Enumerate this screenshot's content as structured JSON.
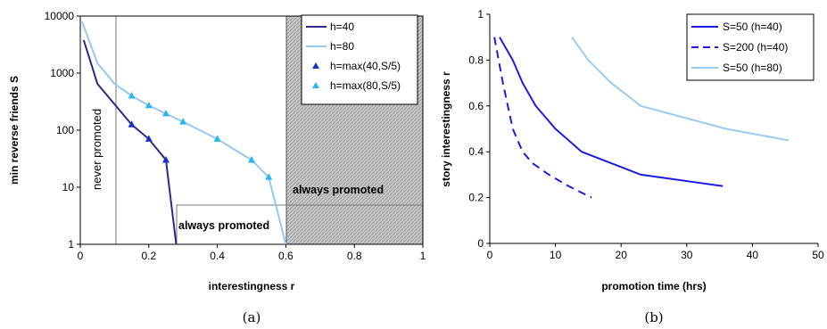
{
  "chart_data": [
    {
      "type": "line",
      "caption": "(a)",
      "xlabel": "interestingness r",
      "ylabel": "min reverse friends S",
      "xlim": [
        0,
        1
      ],
      "ylim": [
        1,
        10000
      ],
      "yscale": "log",
      "xticks": [
        "0",
        "0.2",
        "0.4",
        "0.6",
        "0.8",
        "1"
      ],
      "yticks": [
        "1",
        "10",
        "100",
        "1000",
        "10000"
      ],
      "legend": "top-right",
      "grid": false,
      "colors": {
        "h40": "#2b2b8f",
        "h80": "#98c8ee",
        "tri40": "#1533c8",
        "tri80": "#2ab8ec"
      },
      "series": [
        {
          "name": "h=40",
          "x": [
            0.01,
            0.05,
            0.15,
            0.2,
            0.25,
            0.28
          ],
          "y": [
            3800,
            650,
            125,
            70,
            30,
            1
          ]
        },
        {
          "name": "h=80",
          "x": [
            0.005,
            0.05,
            0.1,
            0.15,
            0.2,
            0.25,
            0.3,
            0.4,
            0.5,
            0.55,
            0.6
          ],
          "y": [
            8000,
            1500,
            650,
            400,
            270,
            195,
            140,
            70,
            30,
            15,
            1
          ]
        },
        {
          "name": "h=max(40,S/5)",
          "marker": "triangle",
          "x": [
            0.15,
            0.2,
            0.25
          ],
          "y": [
            125,
            70,
            30
          ]
        },
        {
          "name": "h=max(80,S/5)",
          "marker": "triangle",
          "x": [
            0.15,
            0.2,
            0.25,
            0.3,
            0.4,
            0.5,
            0.55
          ],
          "y": [
            400,
            270,
            195,
            140,
            70,
            30,
            15
          ]
        }
      ],
      "annotations": {
        "never": "never promoted",
        "always_h40": "always promoted",
        "always_h80": "always promoted"
      }
    },
    {
      "type": "line",
      "caption": "(b)",
      "xlabel": "promotion time (hrs)",
      "ylabel": "story interestingness r",
      "xlim": [
        0,
        50
      ],
      "ylim": [
        0,
        1
      ],
      "xticks": [
        "0",
        "10",
        "20",
        "30",
        "40",
        "50"
      ],
      "yticks": [
        "0",
        "0.2",
        "0.4",
        "0.6",
        "0.8",
        "1"
      ],
      "legend": "top-right",
      "grid": false,
      "colors": {
        "s50h40": "#1c1ce0",
        "s200h40": "#1c1ce0",
        "s50h80": "#9ccbf0"
      },
      "series": [
        {
          "name": "S=50 (h=40)",
          "dash": "solid",
          "x": [
            1.5,
            3.5,
            5,
            7,
            10,
            14,
            23,
            35.5
          ],
          "y": [
            0.9,
            0.8,
            0.7,
            0.6,
            0.5,
            0.4,
            0.3,
            0.25
          ]
        },
        {
          "name": "S=200 (h=40)",
          "dash": "dashed",
          "x": [
            0.7,
            2,
            3.5,
            5,
            6.5,
            9,
            12,
            15.5
          ],
          "y": [
            0.9,
            0.7,
            0.5,
            0.4,
            0.35,
            0.3,
            0.25,
            0.2
          ]
        },
        {
          "name": "S=50 (h=80)",
          "dash": "solid",
          "x": [
            12.5,
            15,
            18.5,
            23,
            36,
            45.5
          ],
          "y": [
            0.9,
            0.8,
            0.7,
            0.6,
            0.5,
            0.45
          ]
        }
      ]
    }
  ]
}
